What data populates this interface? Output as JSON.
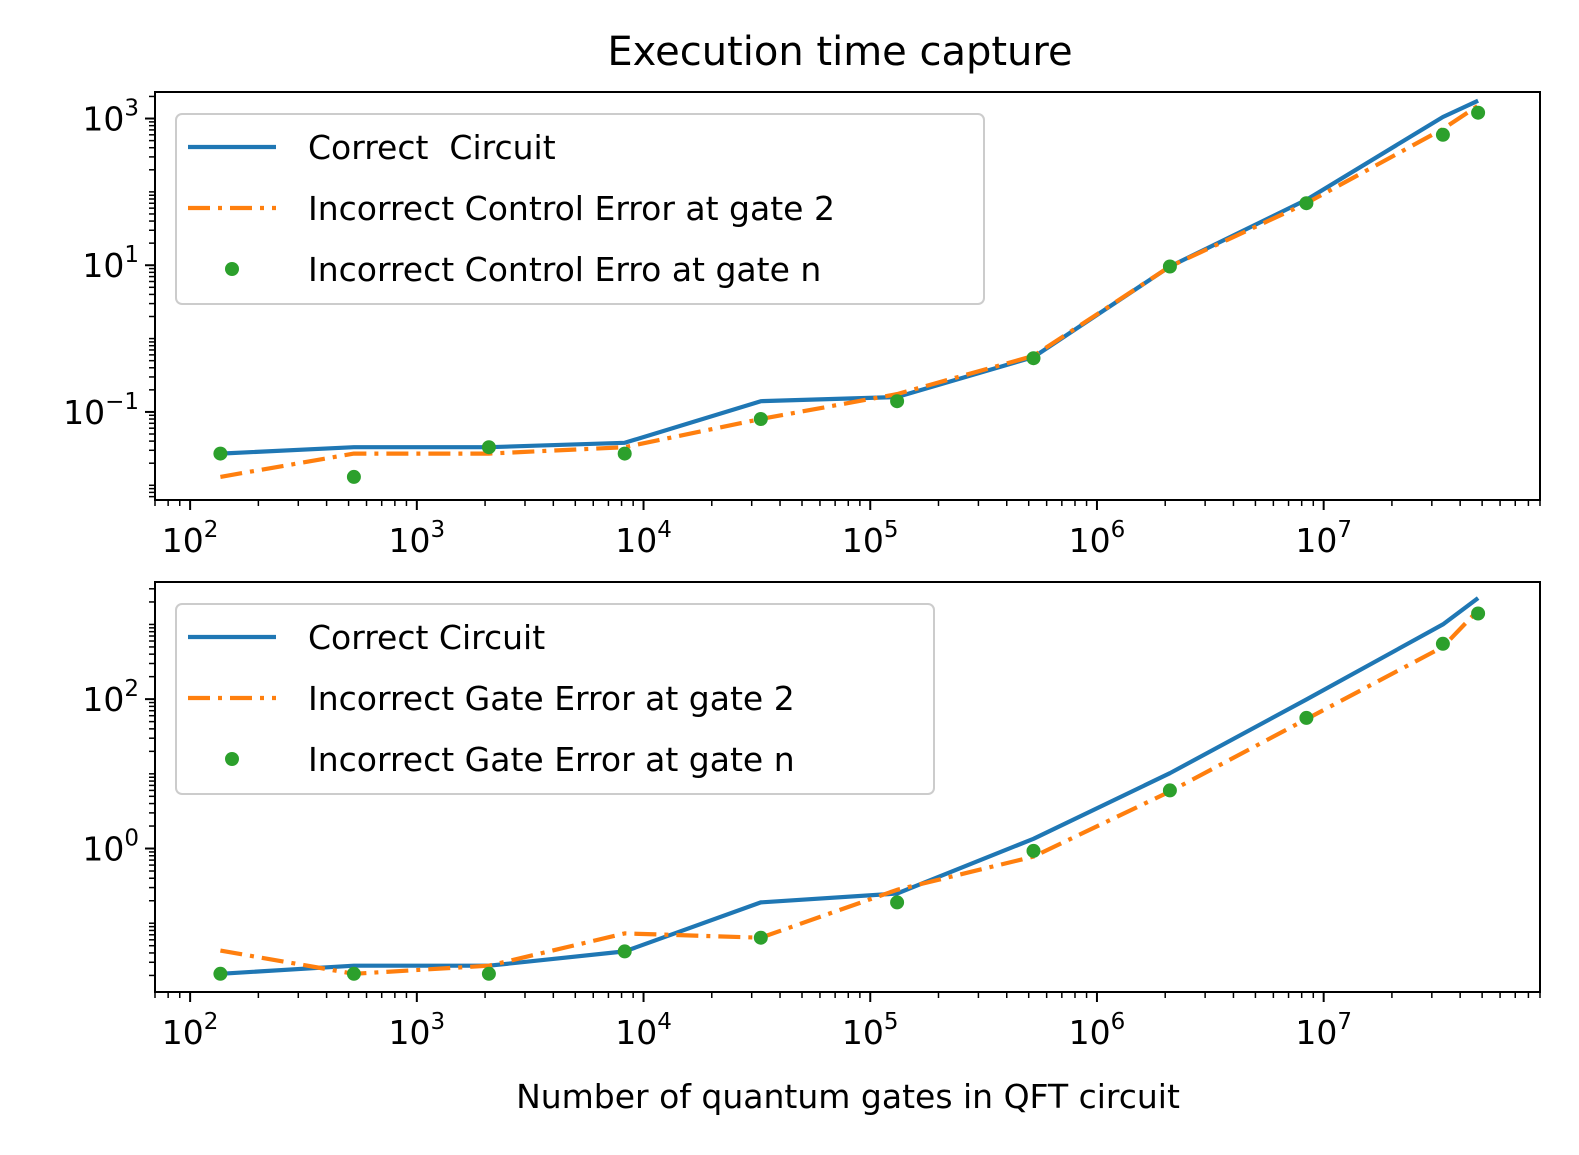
{
  "chart_data": [
    {
      "type": "line",
      "title": "Execution time capture",
      "xlabel": "",
      "ylabel": "",
      "xscale": "log",
      "yscale": "log",
      "xlim": [
        70,
        90000000
      ],
      "ylim": [
        0.0063,
        2300
      ],
      "x_tick_labels": [
        {
          "value": 100,
          "base": "10",
          "exp": "2"
        },
        {
          "value": 1000,
          "base": "10",
          "exp": "3"
        },
        {
          "value": 10000,
          "base": "10",
          "exp": "4"
        },
        {
          "value": 100000,
          "base": "10",
          "exp": "5"
        },
        {
          "value": 1000000,
          "base": "10",
          "exp": "6"
        },
        {
          "value": 10000000,
          "base": "10",
          "exp": "7"
        }
      ],
      "y_tick_labels": [
        {
          "value": 0.1,
          "base": "10",
          "exp": "−1"
        },
        {
          "value": 10,
          "base": "10",
          "exp": "1"
        },
        {
          "value": 1000,
          "base": "10",
          "exp": "3"
        }
      ],
      "legend_position": "upper-left",
      "series": [
        {
          "name": "Correct  Circuit",
          "style": "solid",
          "color": "#1f77b4",
          "x": [
            136,
            528,
            2080,
            8256,
            32896,
            131328,
            524800,
            2098176,
            8390656,
            33558528,
            48000000
          ],
          "y": [
            0.027,
            0.033,
            0.033,
            0.038,
            0.14,
            0.16,
            0.56,
            9.6,
            78,
            1050,
            1750
          ]
        },
        {
          "name": "Incorrect Control Error at gate 2",
          "style": "dashdot",
          "color": "#ff7f0e",
          "x": [
            136,
            528,
            2080,
            8256,
            32896,
            131328,
            524800,
            2098176,
            8390656,
            33558528,
            48000000
          ],
          "y": [
            0.013,
            0.027,
            0.027,
            0.033,
            0.08,
            0.175,
            0.58,
            9.6,
            70,
            720,
            1500
          ]
        },
        {
          "name": "Incorrect Control Erro at gate n",
          "style": "dots",
          "color": "#2ca02c",
          "x": [
            136,
            528,
            2080,
            8256,
            32896,
            131328,
            524800,
            2098176,
            8390656,
            33558528,
            48000000
          ],
          "y": [
            0.027,
            0.013,
            0.033,
            0.027,
            0.08,
            0.14,
            0.54,
            9.6,
            70,
            600,
            1200
          ]
        }
      ]
    },
    {
      "type": "line",
      "title": "",
      "xlabel": "Number of quantum gates in QFT circuit",
      "ylabel": "",
      "xscale": "log",
      "yscale": "log",
      "xlim": [
        70,
        90000000
      ],
      "ylim": [
        0.012,
        3700
      ],
      "x_tick_labels": [
        {
          "value": 100,
          "base": "10",
          "exp": "2"
        },
        {
          "value": 1000,
          "base": "10",
          "exp": "3"
        },
        {
          "value": 10000,
          "base": "10",
          "exp": "4"
        },
        {
          "value": 100000,
          "base": "10",
          "exp": "5"
        },
        {
          "value": 1000000,
          "base": "10",
          "exp": "6"
        },
        {
          "value": 10000000,
          "base": "10",
          "exp": "7"
        }
      ],
      "y_tick_labels": [
        {
          "value": 1,
          "base": "10",
          "exp": "0"
        },
        {
          "value": 100,
          "base": "10",
          "exp": "2"
        }
      ],
      "legend_position": "upper-left",
      "series": [
        {
          "name": "Correct Circuit",
          "style": "solid",
          "color": "#1f77b4",
          "x": [
            136,
            528,
            2080,
            8256,
            32896,
            131328,
            524800,
            2098176,
            8390656,
            33558528,
            48000000
          ],
          "y": [
            0.021,
            0.027,
            0.027,
            0.042,
            0.19,
            0.25,
            1.35,
            10.2,
            99,
            1000,
            2250
          ]
        },
        {
          "name": "Incorrect Gate Error at gate 2",
          "style": "dashdot",
          "color": "#ff7f0e",
          "x": [
            136,
            528,
            2080,
            8256,
            32896,
            131328,
            524800,
            2098176,
            8390656,
            33558528,
            48000000
          ],
          "y": [
            0.043,
            0.021,
            0.027,
            0.073,
            0.064,
            0.28,
            0.78,
            5.8,
            54,
            500,
            1550
          ]
        },
        {
          "name": "Incorrect Gate Error at gate n",
          "style": "dots",
          "color": "#2ca02c",
          "x": [
            136,
            528,
            2080,
            8256,
            32896,
            131328,
            524800,
            2098176,
            8390656,
            33558528,
            48000000
          ],
          "y": [
            0.021,
            0.021,
            0.021,
            0.042,
            0.064,
            0.19,
            0.93,
            6.0,
            56,
            550,
            1400
          ]
        }
      ]
    }
  ]
}
